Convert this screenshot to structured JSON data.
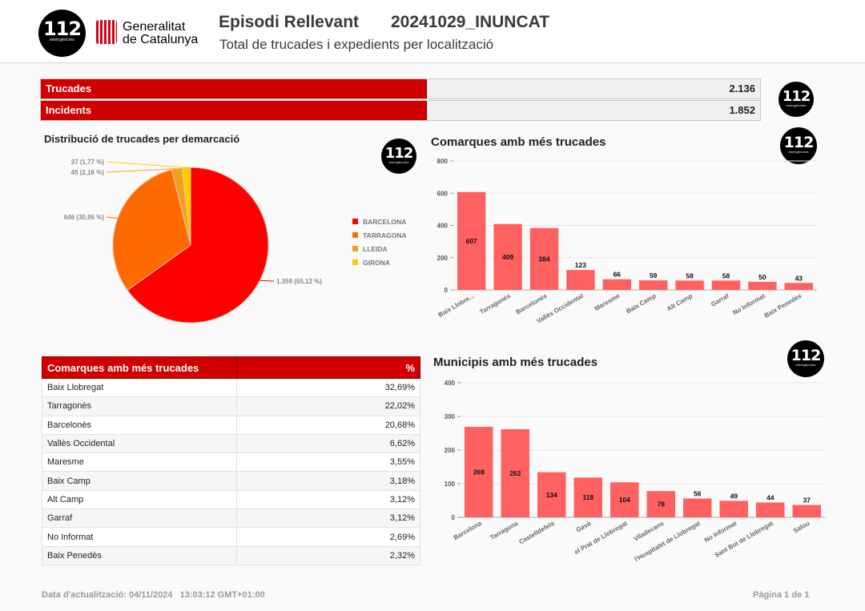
{
  "header": {
    "logo_number": "112",
    "logo_caption": "emergències",
    "gov_line1": "Generalitat",
    "gov_line2": "de Catalunya",
    "title": "Episodi Rellevant",
    "code": "20241029_INUNCAT",
    "subtitle": "Total de trucades i expedients per localització"
  },
  "kpis": [
    {
      "label": "Trucades",
      "value": "2.136"
    },
    {
      "label": "Incidents",
      "value": "1.852"
    }
  ],
  "pie_section": {
    "title": "Distribució de trucades per demarcació"
  },
  "bar1_section": {
    "title": "Comarques amb més trucades"
  },
  "bar2_section": {
    "title": "Municipis amb més trucades"
  },
  "table": {
    "col_name": "Comarques amb més trucades",
    "col_pct": "%",
    "rows": [
      {
        "name": "Baix Llobregat",
        "pct": "32,69%"
      },
      {
        "name": "Tarragonès",
        "pct": "22,02%"
      },
      {
        "name": "Barcelonès",
        "pct": "20,68%"
      },
      {
        "name": "Vallès Occidental",
        "pct": "6,62%"
      },
      {
        "name": "Maresme",
        "pct": "3,55%"
      },
      {
        "name": "Baix Camp",
        "pct": "3,18%"
      },
      {
        "name": "Alt Camp",
        "pct": "3,12%"
      },
      {
        "name": "Garraf",
        "pct": "3,12%"
      },
      {
        "name": "No Informat",
        "pct": "2,69%"
      },
      {
        "name": "Baix Penedès",
        "pct": "2,32%"
      }
    ]
  },
  "footer": {
    "updated": "Data d'actualització: 04/11/2024   13:03:12 GMT+01:00",
    "page": "Pàgina 1 de 1"
  },
  "colors": {
    "brand_red": "#d10000",
    "bar": "#ff6161",
    "barcelona": "#ff0000",
    "tarragona": "#ff6a00",
    "lleida": "#f0a020",
    "girona": "#ffcc00"
  },
  "chart_data": [
    {
      "type": "pie",
      "title": "Distribució de trucades per demarcació",
      "categories": [
        "BARCELONA",
        "TARRAGONA",
        "LLEIDA",
        "GIRONA"
      ],
      "values": [
        1359,
        646,
        45,
        37
      ],
      "labels": [
        "1.359 (65,12 %)",
        "646 (30,95 %)",
        "45 (2,16 %)",
        "37 (1,77 %)"
      ],
      "colors": [
        "#ff0000",
        "#ff6a00",
        "#f0a020",
        "#ffcc00"
      ],
      "legend": "right"
    },
    {
      "type": "bar",
      "title": "Comarques amb més trucades",
      "categories": [
        "Baix Llobre...",
        "Tarragonès",
        "Barcelonès",
        "Vallès Occidental",
        "Maresme",
        "Baix Camp",
        "Alt Camp",
        "Garraf",
        "No Informat",
        "Baix Penedès"
      ],
      "values": [
        607,
        409,
        384,
        123,
        66,
        59,
        58,
        58,
        50,
        43
      ],
      "yticks": [
        "0",
        "200",
        "400",
        "600",
        "800"
      ],
      "ylim": [
        0,
        800
      ],
      "grid": true
    },
    {
      "type": "bar",
      "title": "Municipis amb més trucades",
      "categories": [
        "Barcelona",
        "Tarragona",
        "Castelldefels",
        "Gavà",
        "el Prat de Llobregat",
        "Viladecans",
        "l'Hospitalet de Llobregat",
        "No Informat",
        "Sant Boi de Llobregat",
        "Salou"
      ],
      "values": [
        269,
        262,
        134,
        118,
        104,
        78,
        56,
        49,
        44,
        37
      ],
      "yticks": [
        "0",
        "100",
        "200",
        "300",
        "400"
      ],
      "ylim": [
        0,
        400
      ],
      "grid": true
    }
  ]
}
